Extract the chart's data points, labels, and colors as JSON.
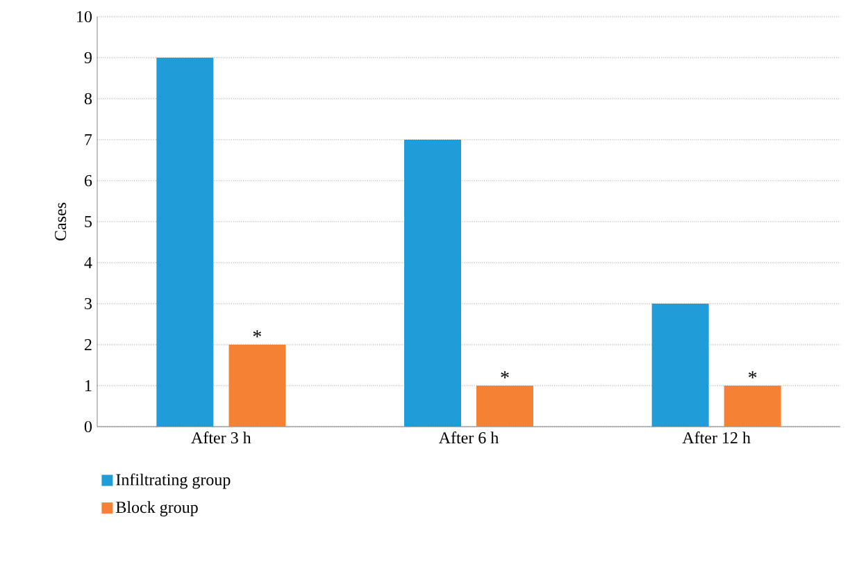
{
  "chart_data": {
    "type": "bar",
    "ylabel": "Cases",
    "categories": [
      "After 3 h",
      "After 6 h",
      "After 12 h"
    ],
    "series": [
      {
        "name": "Infiltrating group",
        "color": "#1f9dd9",
        "values": [
          9,
          7,
          3
        ]
      },
      {
        "name": "Block group",
        "color": "#f58134",
        "values": [
          2,
          1,
          1
        ]
      }
    ],
    "ylim": [
      0,
      10
    ],
    "yticks": [
      0,
      1,
      2,
      3,
      4,
      5,
      6,
      7,
      8,
      9,
      10
    ],
    "grid": "y",
    "legend": "bottom left",
    "annotations": [
      "*",
      "*",
      "*"
    ]
  }
}
